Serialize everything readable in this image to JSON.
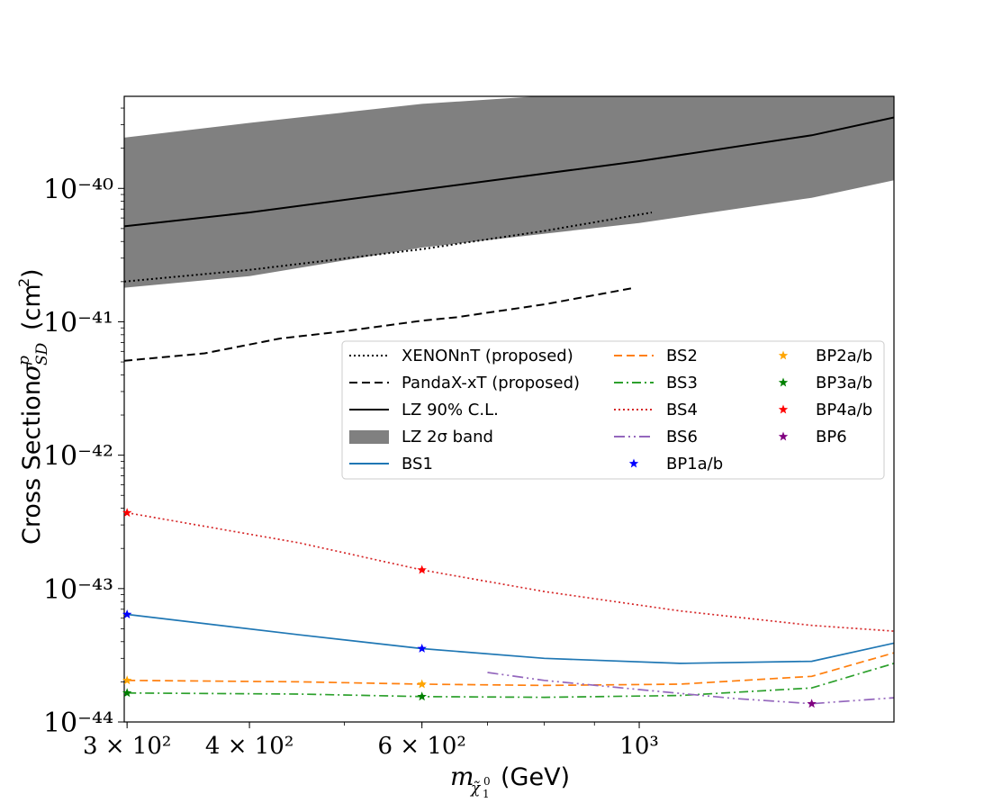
{
  "chart_data": {
    "type": "line",
    "xlabel": "m_{\\tilde{\\chi}_1^0} (GeV)",
    "ylabel": "Cross Section \\sigma^p_{SD} (cm^2)",
    "x_scale": "log",
    "y_scale": "log",
    "xlim": [
      298,
      1820
    ],
    "ylim": [
      1e-44,
      4.9e-40
    ],
    "grid": false,
    "legend_placement": "center-right",
    "x_ticks": [
      {
        "value": 300,
        "label": "3 × 10²"
      },
      {
        "value": 400,
        "label": "4 × 10²"
      },
      {
        "value": 600,
        "label": "6 × 10²"
      },
      {
        "value": 1000,
        "label": "10³"
      }
    ],
    "y_ticks": [
      {
        "value": 1e-44,
        "label": "10⁻⁴⁴"
      },
      {
        "value": 1e-43,
        "label": "10⁻⁴³"
      },
      {
        "value": 1e-42,
        "label": "10⁻⁴²"
      },
      {
        "value": 1e-41,
        "label": "10⁻⁴¹"
      },
      {
        "value": 1e-40,
        "label": "10⁻⁴⁰"
      }
    ],
    "band": {
      "name": "LZ 2σ band",
      "color": "#808080",
      "x": [
        298,
        400,
        600,
        1000,
        1500,
        1820
      ],
      "upper": [
        2.4e-40,
        3.1e-40,
        4.3e-40,
        5.5e-40,
        6e-40,
        6.2e-40
      ],
      "lower": [
        1.8e-41,
        2.2e-41,
        3.6e-41,
        5.5e-41,
        8.5e-41,
        1.15e-40
      ]
    },
    "series": [
      {
        "name": "XENONnT (proposed)",
        "color": "#000000",
        "style": "dotted",
        "x": [
          298,
          400,
          600,
          800,
          1030
        ],
        "y": [
          2e-41,
          2.45e-41,
          3.5e-41,
          4.8e-41,
          6.6e-41
        ]
      },
      {
        "name": "PandaX-xT (proposed)",
        "color": "#000000",
        "style": "dashed",
        "x": [
          298,
          360,
          430,
          500,
          600,
          650,
          800,
          990
        ],
        "y": [
          5.1e-42,
          5.8e-42,
          7.5e-42,
          8.5e-42,
          1.02e-41,
          1.08e-41,
          1.35e-41,
          1.8e-41
        ]
      },
      {
        "name": "LZ 90% C.L.",
        "color": "#000000",
        "style": "solid",
        "x": [
          298,
          400,
          600,
          1000,
          1500,
          1820
        ],
        "y": [
          5.2e-41,
          6.6e-41,
          9.8e-41,
          1.6e-40,
          2.5e-40,
          3.4e-40
        ]
      },
      {
        "name": "BS1",
        "color": "#1f77b4",
        "style": "solid",
        "x": [
          300,
          450,
          600,
          800,
          1100,
          1500,
          1820
        ],
        "y": [
          6.4e-44,
          4.5e-44,
          3.55e-44,
          3e-44,
          2.75e-44,
          2.85e-44,
          3.9e-44
        ]
      },
      {
        "name": "BS2",
        "color": "#ff7f0e",
        "style": "dashed",
        "x": [
          300,
          450,
          600,
          800,
          1100,
          1500,
          1820
        ],
        "y": [
          2.05e-44,
          2e-44,
          1.92e-44,
          1.88e-44,
          1.92e-44,
          2.2e-44,
          3.3e-44
        ]
      },
      {
        "name": "BS3",
        "color": "#2ca02c",
        "style": "dashdot",
        "x": [
          300,
          450,
          600,
          800,
          1100,
          1500,
          1820
        ],
        "y": [
          1.65e-44,
          1.62e-44,
          1.55e-44,
          1.53e-44,
          1.58e-44,
          1.8e-44,
          2.75e-44
        ]
      },
      {
        "name": "BS4",
        "color": "#d62728",
        "style": "dotted",
        "x": [
          300,
          450,
          600,
          800,
          1100,
          1500,
          1820
        ],
        "y": [
          3.7e-43,
          2.2e-43,
          1.38e-43,
          9.5e-44,
          6.8e-44,
          5.3e-44,
          4.8e-44
        ]
      },
      {
        "name": "BS6",
        "color": "#9467bd",
        "style": "dashdotdot",
        "x": [
          700,
          800,
          1000,
          1250,
          1500,
          1820
        ],
        "y": [
          2.35e-44,
          2.05e-44,
          1.75e-44,
          1.5e-44,
          1.37e-44,
          1.52e-44
        ]
      }
    ],
    "markers": [
      {
        "name": "BP1a/b",
        "color": "#0000ff",
        "points": [
          {
            "x": 300,
            "y": 6.4e-44
          },
          {
            "x": 600,
            "y": 3.55e-44
          }
        ]
      },
      {
        "name": "BP2a/b",
        "color": "#ffa500",
        "points": [
          {
            "x": 300,
            "y": 2.05e-44
          },
          {
            "x": 600,
            "y": 1.92e-44
          }
        ]
      },
      {
        "name": "BP3a/b",
        "color": "#008000",
        "points": [
          {
            "x": 300,
            "y": 1.65e-44
          },
          {
            "x": 600,
            "y": 1.55e-44
          }
        ]
      },
      {
        "name": "BP4a/b",
        "color": "#ff0000",
        "points": [
          {
            "x": 300,
            "y": 3.7e-43
          },
          {
            "x": 600,
            "y": 1.38e-43
          }
        ]
      },
      {
        "name": "BP6",
        "color": "#800080",
        "points": [
          {
            "x": 1500,
            "y": 1.37e-44
          }
        ]
      }
    ]
  }
}
